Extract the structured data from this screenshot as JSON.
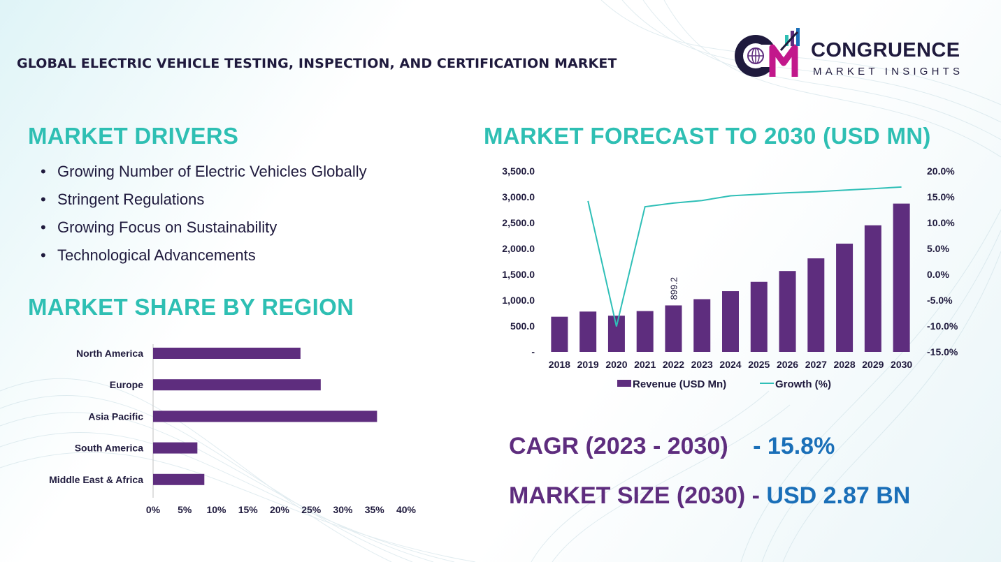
{
  "header": {
    "title": "GLOBAL ELECTRIC VEHICLE TESTING, INSPECTION, AND CERTIFICATION MARKET"
  },
  "brand": {
    "logo_text": "CM",
    "name": "CONGRUENCE",
    "tagline": "MARKET INSIGHTS"
  },
  "drivers": {
    "title": "MARKET DRIVERS",
    "items": [
      "Growing Number of Electric Vehicles Globally",
      "Stringent Regulations",
      "Growing Focus on Sustainability",
      "Technological Advancements"
    ]
  },
  "kpis": {
    "cagr_label": "CAGR (2023 - 2030)",
    "cagr_value": "- 15.8%",
    "size_label": "MARKET SIZE (2030) -",
    "size_value": "USD 2.87 BN"
  },
  "colors": {
    "accent_teal": "#2ebfb3",
    "bar_purple": "#5e2d7e",
    "line_teal": "#2fbfb7",
    "dark_text": "#1f1a3d",
    "value_blue": "#1a6fb8"
  },
  "chart_data": [
    {
      "type": "bar",
      "orientation": "horizontal",
      "title": "MARKET SHARE BY REGION",
      "categories": [
        "North America",
        "Europe",
        "Asia Pacific",
        "South America",
        "Middle East & Africa"
      ],
      "values": [
        23.3,
        26.5,
        35.4,
        7.0,
        8.1
      ],
      "xlim": [
        0,
        40
      ],
      "x_ticks": [
        "0%",
        "5%",
        "10%",
        "15%",
        "20%",
        "25%",
        "30%",
        "35%",
        "40%"
      ],
      "grid": false
    },
    {
      "type": "bar+line",
      "title": "MARKET FORECAST TO 2030 (USD MN)",
      "categories": [
        "2018",
        "2019",
        "2020",
        "2021",
        "2022",
        "2023",
        "2024",
        "2025",
        "2026",
        "2027",
        "2028",
        "2029",
        "2030"
      ],
      "series": [
        {
          "name": "Revenue (USD Mn)",
          "type": "bar",
          "axis": "left",
          "values": [
            680,
            780,
            700,
            790,
            899.2,
            1020,
            1175,
            1355,
            1565,
            1810,
            2095,
            2450,
            2870
          ]
        },
        {
          "name": "Growth (%)",
          "type": "line",
          "axis": "right",
          "values": [
            null,
            14.2,
            -10.1,
            13.1,
            13.8,
            14.3,
            15.2,
            15.5,
            15.8,
            16.0,
            16.3,
            16.6,
            16.9
          ]
        }
      ],
      "data_labels": [
        {
          "category": "2022",
          "text": "899.2"
        }
      ],
      "ylim_left": [
        0,
        3500
      ],
      "y_ticks_left": [
        "-",
        "500.0",
        "1,000.0",
        "1,500.0",
        "2,000.0",
        "2,500.0",
        "3,000.0",
        "3,500.0"
      ],
      "ylim_right": [
        -15,
        20
      ],
      "y_ticks_right": [
        "-15.0%",
        "-10.0%",
        "-5.0%",
        "0.0%",
        "5.0%",
        "10.0%",
        "15.0%",
        "20.0%"
      ],
      "legend": "bottom",
      "grid": false
    }
  ]
}
